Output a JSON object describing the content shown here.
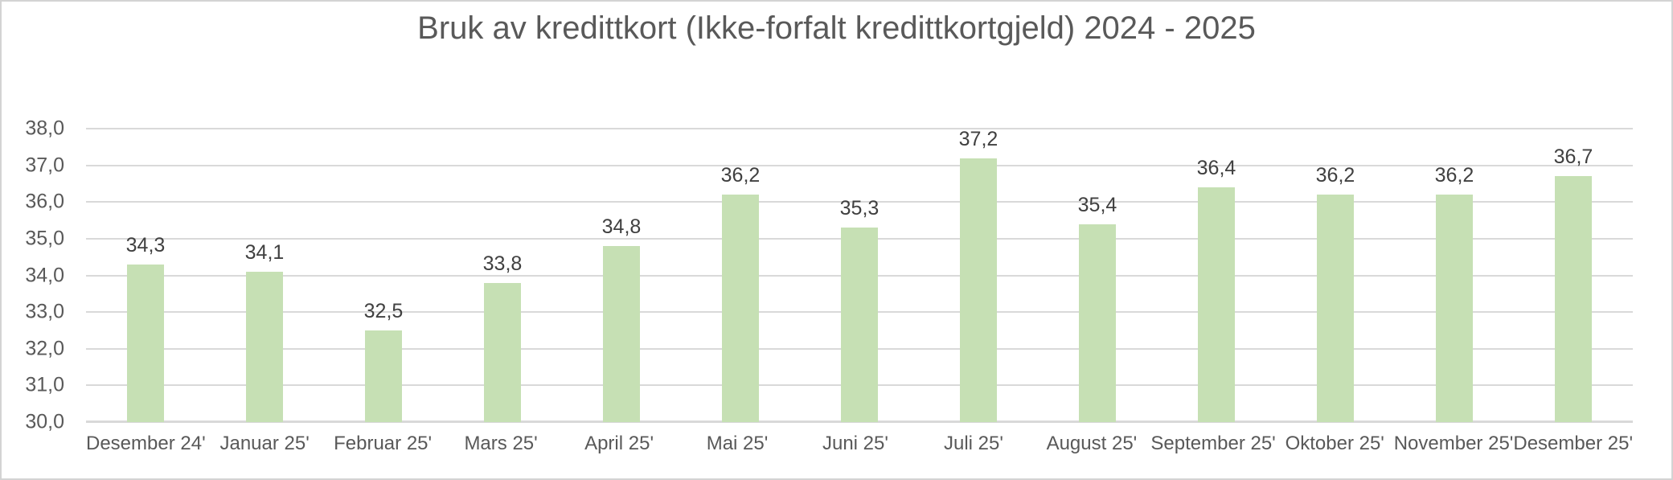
{
  "title": "Bruk av kredittkort (Ikke-forfalt kredittkortgjeld) 2024 - 2025",
  "colors": {
    "bar": "#c6e0b4",
    "gridline": "#d9d9d9",
    "axis_text": "#595959",
    "data_label": "#404040",
    "title_text": "#595959",
    "frame_border": "#d3d3d3",
    "background": "#ffffff"
  },
  "chart_data": {
    "type": "bar",
    "title": "Bruk av kredittkort (Ikke-forfalt kredittkortgjeld) 2024 - 2025",
    "categories": [
      "Desember 24'",
      "Januar 25'",
      "Februar 25'",
      "Mars 25'",
      "April 25'",
      "Mai 25'",
      "Juni 25'",
      "Juli 25'",
      "August 25'",
      "September 25'",
      "Oktober 25'",
      "November 25'",
      "Desember 25'"
    ],
    "values": [
      34.3,
      34.1,
      32.5,
      33.8,
      34.8,
      36.2,
      35.3,
      37.2,
      35.4,
      36.4,
      36.2,
      36.2,
      36.7
    ],
    "value_labels": [
      "34,3",
      "34,1",
      "32,5",
      "33,8",
      "34,8",
      "36,2",
      "35,3",
      "37,2",
      "35,4",
      "36,4",
      "36,2",
      "36,2",
      "36,7"
    ],
    "xlabel": "",
    "ylabel": "",
    "ylim": [
      30,
      38
    ],
    "ytick_step": 1,
    "ytick_labels": [
      "30,0",
      "31,0",
      "32,0",
      "33,0",
      "34,0",
      "35,0",
      "36,0",
      "37,0",
      "38,0"
    ],
    "grid": true,
    "legend": "none",
    "data_labels": "above bars"
  }
}
